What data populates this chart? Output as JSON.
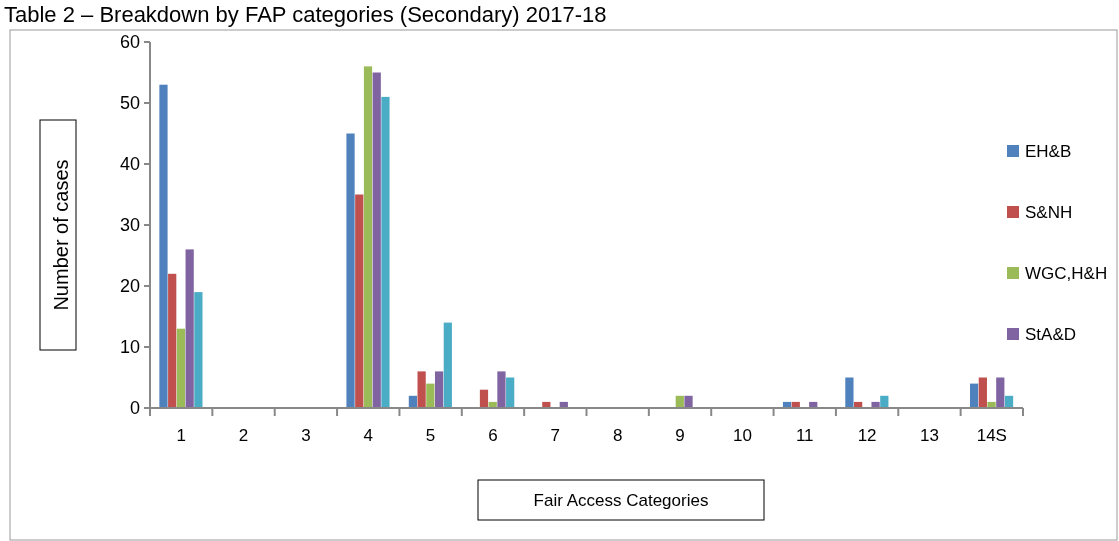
{
  "chart_data": {
    "type": "bar",
    "title": "Table 2 – Breakdown by FAP categories (Secondary) 2017-18",
    "xlabel": "Fair Access Categories",
    "ylabel": "Number of cases",
    "categories": [
      "1",
      "2",
      "3",
      "4",
      "5",
      "6",
      "7",
      "8",
      "9",
      "10",
      "11",
      "12",
      "13",
      "14S"
    ],
    "series": [
      {
        "name": "EH&B",
        "color": "#4f81bd",
        "values": [
          53,
          0,
          0,
          45,
          2,
          0,
          0,
          0,
          0,
          0,
          1,
          5,
          0,
          4
        ]
      },
      {
        "name": "S&NH",
        "color": "#c0504d",
        "values": [
          22,
          0,
          0,
          35,
          6,
          3,
          1,
          0,
          0,
          0,
          1,
          1,
          0,
          5
        ]
      },
      {
        "name": "WGC,H&H",
        "color": "#9bbb59",
        "values": [
          13,
          0,
          0,
          56,
          4,
          1,
          0,
          0,
          2,
          0,
          0,
          0,
          0,
          1
        ]
      },
      {
        "name": "StA&D",
        "color": "#8064a2",
        "values": [
          26,
          0,
          0,
          55,
          6,
          6,
          1,
          0,
          2,
          0,
          1,
          1,
          0,
          5
        ]
      },
      {
        "color": "#4bacc6",
        "values": [
          19,
          0,
          0,
          51,
          14,
          5,
          0,
          0,
          0,
          0,
          0,
          2,
          0,
          2
        ]
      }
    ],
    "ylim": [
      0,
      60
    ],
    "yticks": [
      0,
      10,
      20,
      30,
      40,
      50,
      60
    ],
    "grid": false,
    "legend": "right"
  }
}
